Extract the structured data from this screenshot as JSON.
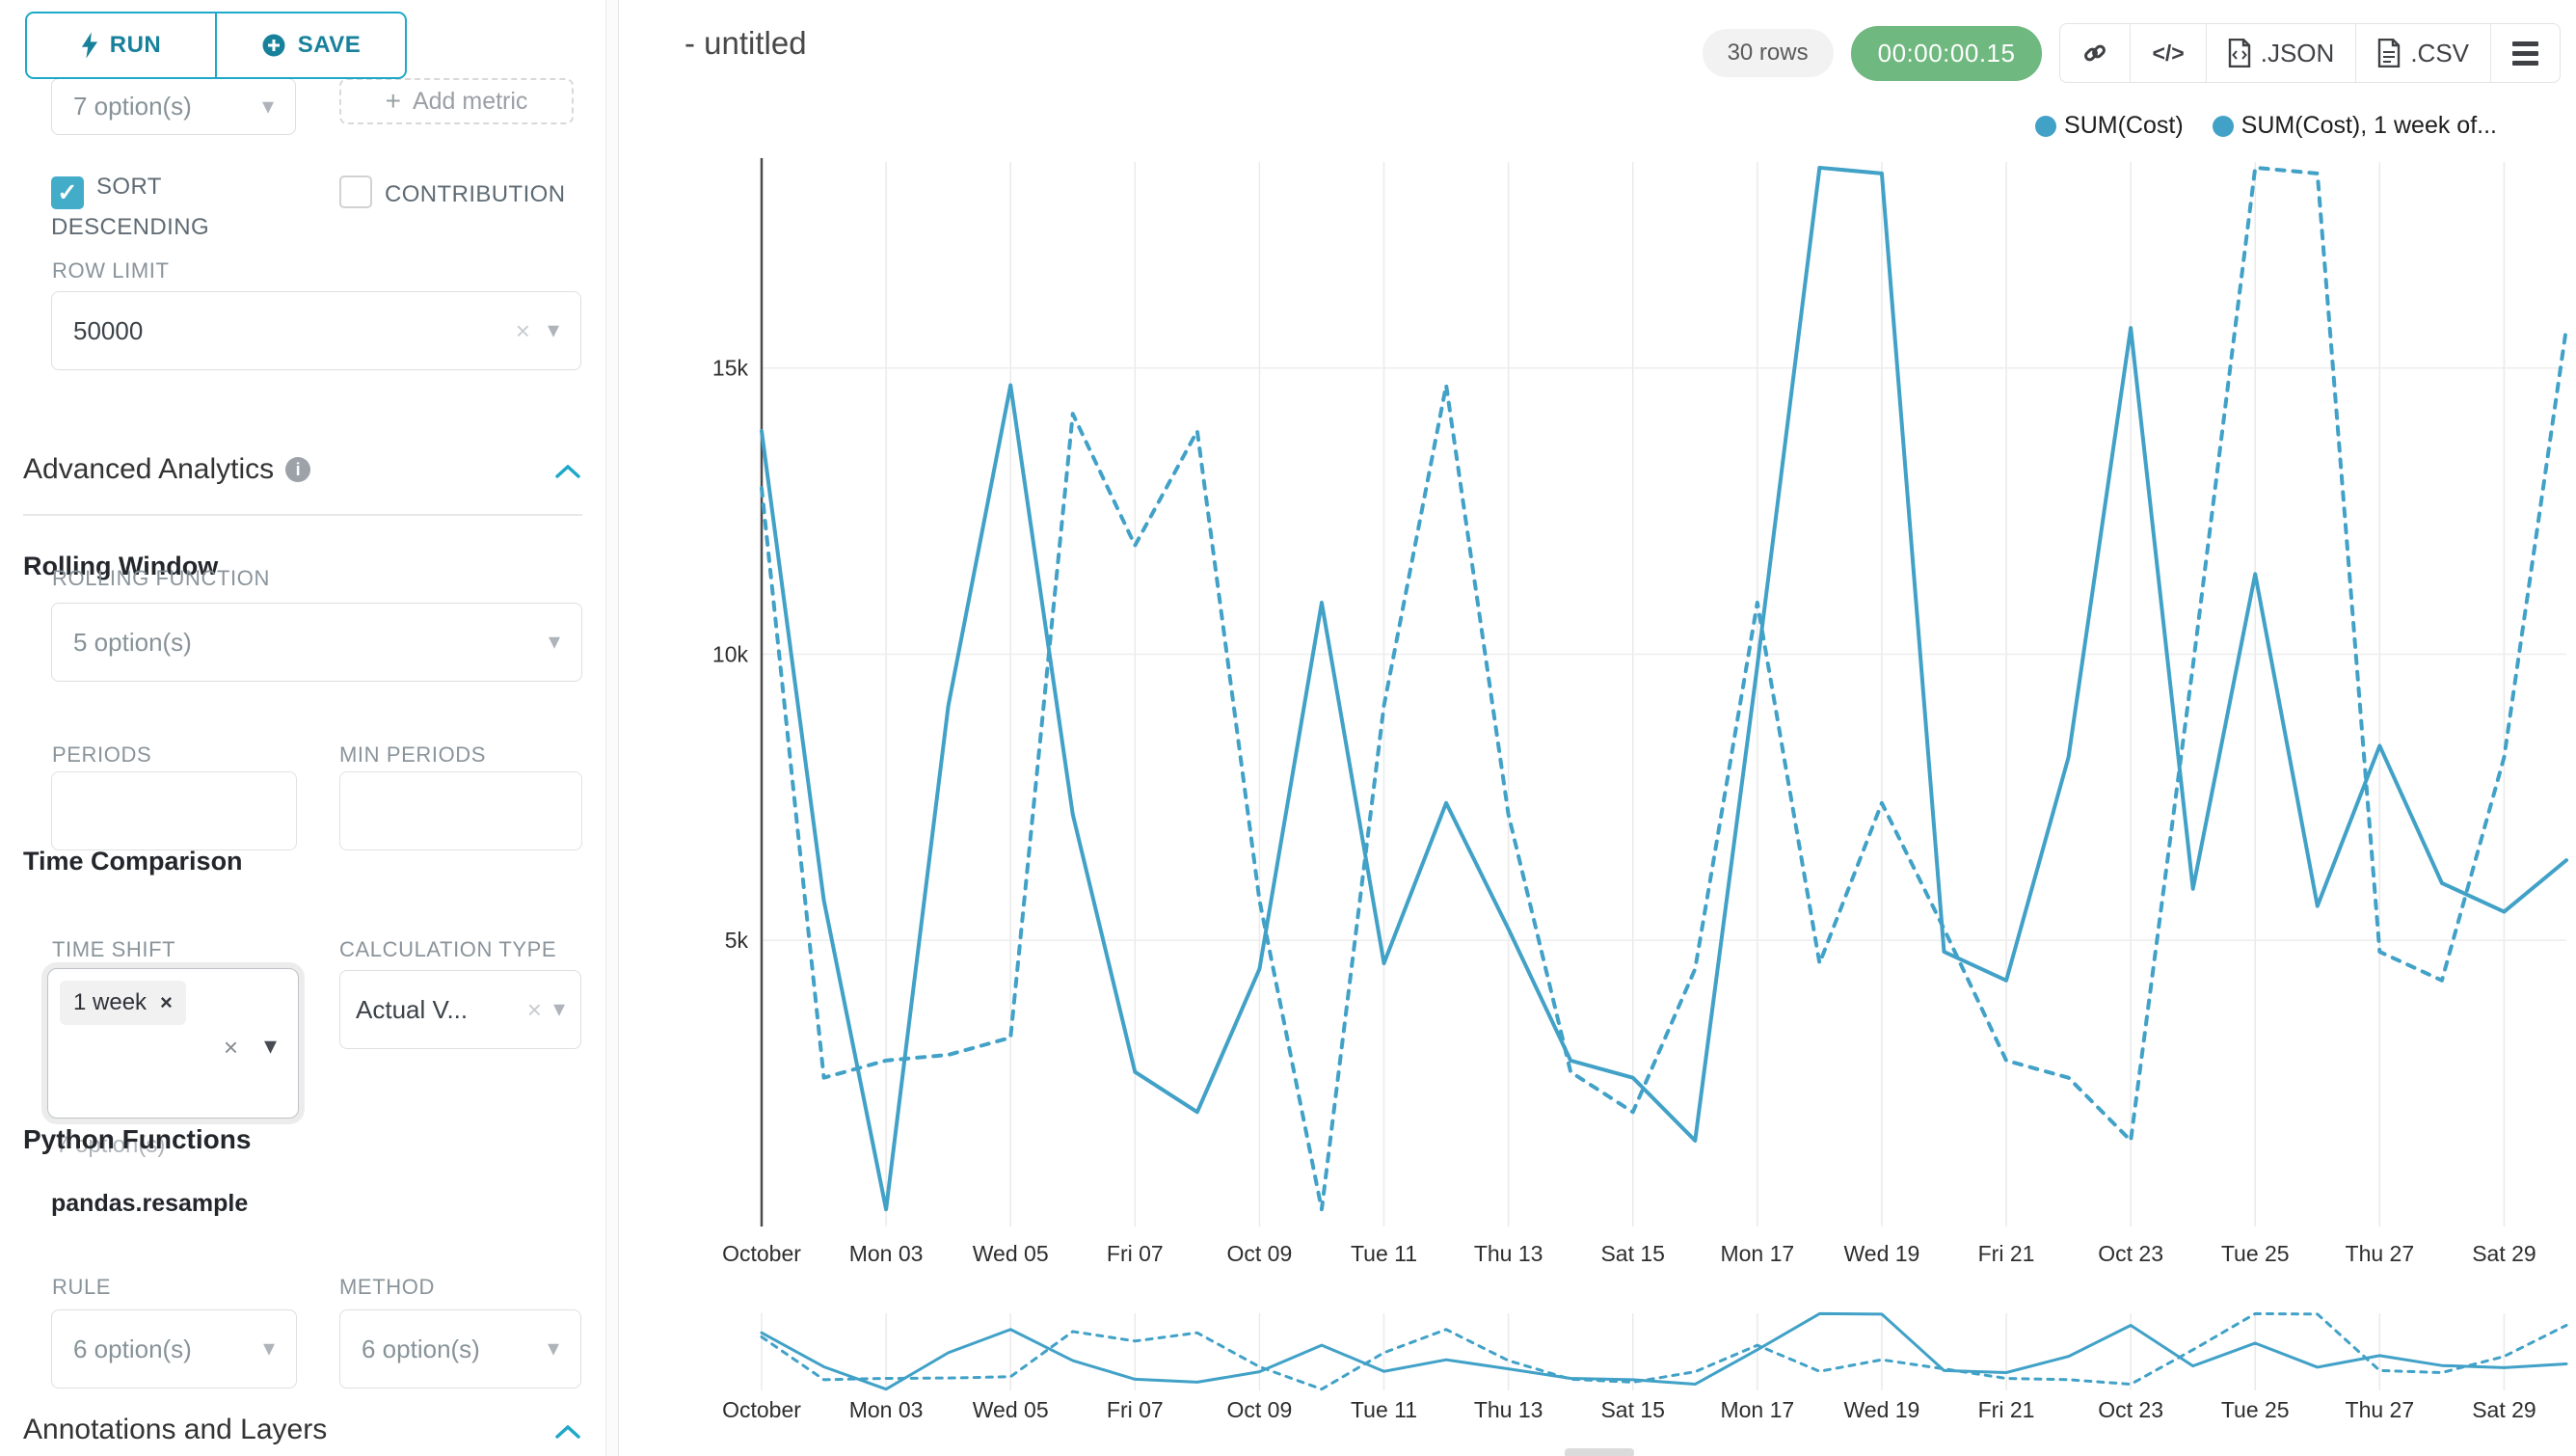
{
  "accent": "#1FA8C9",
  "line_color": "#41A1C7",
  "timer_color": "#6FB87F",
  "sidebar": {
    "run_label": "RUN",
    "save_label": "SAVE",
    "groupby_value": "7 option(s)",
    "add_metric_label": "Add metric",
    "sort_descending_label": "SORT DESCENDING",
    "contribution_label": "CONTRIBUTION",
    "row_limit_label": "ROW LIMIT",
    "row_limit_value": "50000",
    "advanced_analytics_title": "Advanced Analytics",
    "rolling_window_title": "Rolling Window",
    "rolling_function_label": "ROLLING FUNCTION",
    "rolling_function_value": "5 option(s)",
    "periods_label": "PERIODS",
    "min_periods_label": "MIN PERIODS",
    "time_comparison_title": "Time Comparison",
    "time_shift_label": "TIME SHIFT",
    "time_shift_tag": "1 week",
    "time_shift_hint": "7 option(s)",
    "calculation_type_label": "CALCULATION TYPE",
    "calculation_type_value": "Actual V...",
    "python_functions_title": "Python Functions",
    "python_functions_subtitle": "pandas.resample",
    "rule_label": "RULE",
    "rule_value": "6 option(s)",
    "method_label": "METHOD",
    "method_value": "6 option(s)",
    "annotations_title": "Annotations and Layers"
  },
  "header": {
    "title": "- untitled",
    "rows_badge": "30 rows",
    "timer": "00:00:00.15",
    "code_glyph": "</>",
    "json_label": ".JSON",
    "csv_label": ".CSV"
  },
  "chart_data": {
    "type": "line",
    "title": "- untitled",
    "xlabel": "",
    "ylabel": "",
    "x_tick_labels": [
      "October",
      "Mon 03",
      "Wed 05",
      "Fri 07",
      "Oct 09",
      "Tue 11",
      "Thu 13",
      "Sat 15",
      "Mon 17",
      "Wed 19",
      "Fri 21",
      "Oct 23",
      "Tue 25",
      "Thu 27",
      "Sat 29"
    ],
    "x_tick_days": [
      1,
      3,
      5,
      7,
      9,
      11,
      13,
      15,
      17,
      19,
      21,
      23,
      25,
      27,
      29
    ],
    "x_range_days": [
      1,
      30
    ],
    "y_ticks": [
      {
        "value": 5000,
        "label": "5k"
      },
      {
        "value": 10000,
        "label": "10k"
      },
      {
        "value": 15000,
        "label": "15k"
      }
    ],
    "ylim": [
      0,
      18600
    ],
    "grid": true,
    "legend_position": "top-right",
    "has_mini_preview": true,
    "series": [
      {
        "name": "SUM(Cost)",
        "style": "solid",
        "values": [
          13900,
          5700,
          300,
          9100,
          14700,
          7200,
          2700,
          2000,
          4500,
          10900,
          4600,
          7400,
          5200,
          2900,
          2600,
          1500,
          9800,
          18500,
          18400,
          4800,
          4300,
          8200,
          15700,
          5900,
          11400,
          5600,
          8400,
          6000,
          5500,
          6400
        ]
      },
      {
        "name": "SUM(Cost), 1 week of...",
        "style": "dashed",
        "values": [
          12900,
          2600,
          2900,
          3000,
          3300,
          14200,
          11900,
          13900,
          5700,
          300,
          9100,
          14700,
          7200,
          2700,
          2000,
          4500,
          10900,
          4600,
          7400,
          5200,
          2900,
          2600,
          1500,
          9800,
          18500,
          18400,
          4800,
          4300,
          8200,
          15700
        ]
      }
    ]
  }
}
